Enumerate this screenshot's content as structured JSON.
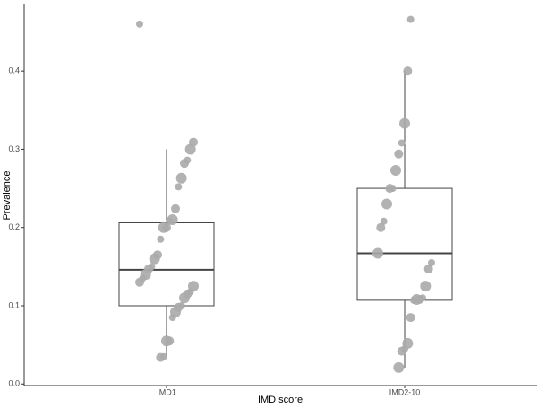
{
  "chart_data": {
    "type": "box",
    "x_label": "IMD score",
    "y_label": "Prevalence",
    "categories": [
      "IMD1",
      "IMD2-10"
    ],
    "box_color": "#444444",
    "point_color": "#aaaaaa",
    "boxes": [
      {
        "whisker_low": 0.033,
        "q1": 0.1,
        "median": 0.146,
        "q3": 0.206,
        "whisker_high": 0.3
      },
      {
        "whisker_low": 0.021,
        "q1": 0.107,
        "median": 0.167,
        "q3": 0.25,
        "whisker_high": 0.4
      }
    ],
    "points": [
      [
        0.46,
        0.309,
        0.3,
        0.286,
        0.282,
        0.263,
        0.252,
        0.224,
        0.21,
        0.208,
        0.2,
        0.2,
        0.185,
        0.165,
        0.16,
        0.15,
        0.147,
        0.14,
        0.135,
        0.13,
        0.125,
        0.118,
        0.115,
        0.11,
        0.1,
        0.098,
        0.092,
        0.085,
        0.055,
        0.055,
        0.035,
        0.034
      ],
      [
        0.466,
        0.4,
        0.333,
        0.308,
        0.294,
        0.273,
        0.25,
        0.25,
        0.23,
        0.208,
        0.2,
        0.167,
        0.155,
        0.147,
        0.125,
        0.11,
        0.108,
        0.108,
        0.107,
        0.085,
        0.052,
        0.045,
        0.042,
        0.021
      ]
    ],
    "ylim": [
      -0.002,
      0.485
    ],
    "yticks": [
      {
        "value": 0,
        "label": "0.0"
      },
      0.1,
      0.2,
      0.3,
      0.4
    ],
    "grid": false
  }
}
